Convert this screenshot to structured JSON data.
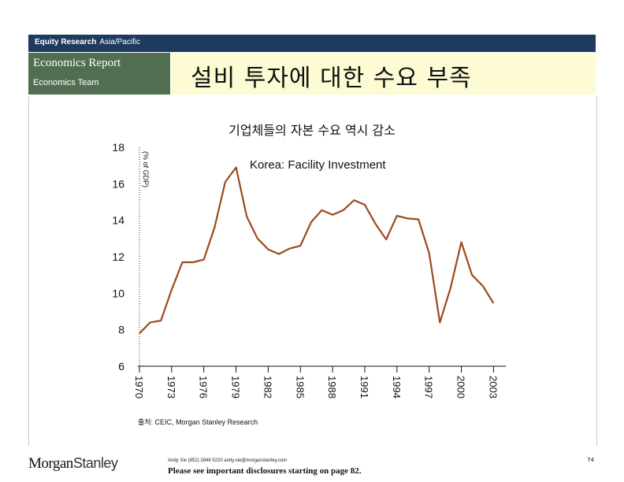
{
  "header": {
    "brand": "Equity Research",
    "region": "Asia/Pacific",
    "report_type": "Economics Report",
    "team": "Economics Team",
    "title": "설비 투자에 대한 수요 부족"
  },
  "chart_title": "기업체들의 자본 수요 역시 감소",
  "source": "출처: CEIC, Morgan Stanley Research",
  "footer": {
    "logo_part1": "Morgan",
    "logo_part2": "Stanley",
    "contact": "Andy Xie (852) 2848 5220 andy.xie@morganstanley.com",
    "disclosure": "Please see important disclosures starting on page 82.",
    "page": "74"
  },
  "colors": {
    "header_bar": "#1f3a5f",
    "left_block": "#516f50",
    "title_block": "#fdfbd3",
    "series_line": "#9c4a1c"
  },
  "chart_data": {
    "type": "line",
    "title": "Korea: Facility Investment",
    "ylabel": "(% of GDP)",
    "xlabel": "",
    "ylim": [
      6,
      18
    ],
    "yticks": [
      "6",
      "8",
      "10",
      "12",
      "14",
      "16",
      "18"
    ],
    "xlim": [
      1970,
      2004
    ],
    "xticks": [
      "1970",
      "1973",
      "1976",
      "1979",
      "1982",
      "1985",
      "1988",
      "1991",
      "1994",
      "1997",
      "2000",
      "2003"
    ],
    "grid": false,
    "series": [
      {
        "name": "",
        "x": [
          1970,
          1971,
          1972,
          1973,
          1974,
          1975,
          1976,
          1977,
          1978,
          1979,
          1980,
          1981,
          1982,
          1983,
          1984,
          1985,
          1986,
          1987,
          1988,
          1989,
          1990,
          1991,
          1992,
          1993,
          1994,
          1995,
          1996,
          1997,
          1998,
          1999,
          2000,
          2001,
          2002,
          2003
        ],
        "values": [
          7.8,
          8.4,
          8.5,
          10.2,
          11.7,
          11.7,
          11.85,
          13.6,
          16.1,
          16.9,
          14.2,
          13.0,
          12.4,
          12.15,
          12.45,
          12.6,
          13.9,
          14.55,
          14.3,
          14.55,
          15.1,
          14.85,
          13.8,
          12.95,
          14.25,
          14.1,
          14.05,
          12.2,
          8.4,
          10.3,
          12.8,
          11.0,
          10.4,
          9.45
        ]
      }
    ]
  }
}
